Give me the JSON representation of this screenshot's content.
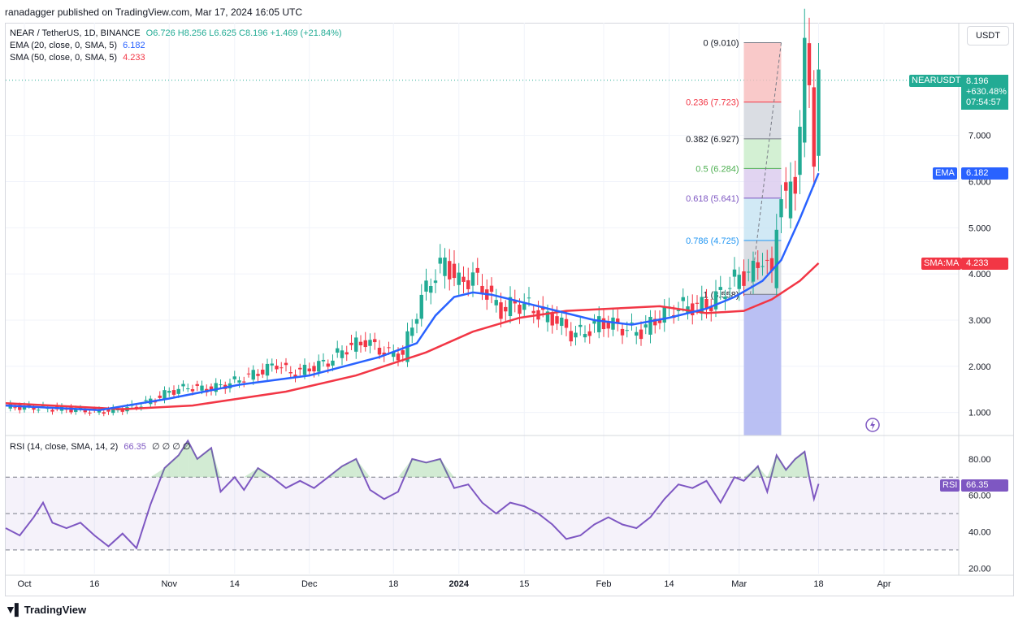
{
  "header": {
    "publisher_line": "ranadagger published on TradingView.com, Mar 17, 2024 16:05 UTC"
  },
  "legend": {
    "symbol": "NEAR / TetherUS, 1D, BINANCE",
    "ohlc": "O6.726 H8.256 L6.625 C8.196 +1.469 (+21.84%)",
    "ema_label": "EMA (20, close, 0, SMA, 5)",
    "ema_value": "6.182",
    "sma_label": "SMA (50, close, 0, SMA, 5)",
    "sma_value": "4.233",
    "rsi_label": "RSI (14, close, SMA, 14, 2)",
    "rsi_value": "66.35",
    "rsi_extra": "∅ ∅ ∅ ∅"
  },
  "currency_button": "USDT",
  "tags": {
    "symbol_tag": "NEARUSDT",
    "price": "8.196",
    "change": "+630.48%",
    "countdown": "07:54:57",
    "ema_tag": "EMA",
    "ema_val": "6.182",
    "sma_tag": "SMA:MA",
    "sma_val": "4.233",
    "rsi_tag": "RSI",
    "rsi_val": "66.35"
  },
  "footer": {
    "brand": "TradingView"
  },
  "colors": {
    "up": "#22ab94",
    "down": "#f23645",
    "ema": "#2962ff",
    "sma": "#f23645",
    "rsi": "#7e57c2"
  },
  "chart_data": [
    {
      "type": "candlestick",
      "title": "NEAR / TetherUS, 1D, BINANCE",
      "y_ticks": [
        "1.000",
        "2.000",
        "3.000",
        "4.000",
        "5.000",
        "6.000",
        "7.000"
      ],
      "ylim": [
        0.5,
        9.3
      ],
      "x_ticks": [
        "Oct",
        "16",
        "Nov",
        "14",
        "Dec",
        "18",
        "2024",
        "15",
        "Feb",
        "14",
        "Mar",
        "18",
        "Apr"
      ],
      "x_tick_days": [
        4,
        19,
        35,
        49,
        65,
        83,
        97,
        111,
        128,
        142,
        157,
        174,
        188
      ],
      "x_range_days": [
        0,
        204
      ],
      "fibonacci": {
        "levels": [
          {
            "label": "0 (9.010)",
            "value": 9.01
          },
          {
            "label": "0.236 (7.723)",
            "value": 7.723
          },
          {
            "label": "0.382 (6.927)",
            "value": 6.927
          },
          {
            "label": "0.5 (6.284)",
            "value": 6.284
          },
          {
            "label": "0.618 (5.641)",
            "value": 5.641
          },
          {
            "label": "0.786 (4.725)",
            "value": 4.725
          },
          {
            "label": "1 (3.558)",
            "value": 3.558
          }
        ],
        "start_day": 158,
        "end_day": 166
      },
      "close_series": [
        {
          "d": 0,
          "c": 1.12
        },
        {
          "d": 5,
          "c": 1.11
        },
        {
          "d": 10,
          "c": 1.08
        },
        {
          "d": 15,
          "c": 1.06
        },
        {
          "d": 19,
          "c": 1.02
        },
        {
          "d": 23,
          "c": 1.04
        },
        {
          "d": 27,
          "c": 1.12
        },
        {
          "d": 31,
          "c": 1.25
        },
        {
          "d": 35,
          "c": 1.45
        },
        {
          "d": 39,
          "c": 1.55
        },
        {
          "d": 43,
          "c": 1.5
        },
        {
          "d": 47,
          "c": 1.6
        },
        {
          "d": 51,
          "c": 1.75
        },
        {
          "d": 55,
          "c": 1.9
        },
        {
          "d": 58,
          "c": 2.05
        },
        {
          "d": 61,
          "c": 1.85
        },
        {
          "d": 65,
          "c": 1.95
        },
        {
          "d": 69,
          "c": 2.1
        },
        {
          "d": 73,
          "c": 2.4
        },
        {
          "d": 77,
          "c": 2.55
        },
        {
          "d": 81,
          "c": 2.3
        },
        {
          "d": 85,
          "c": 2.25
        },
        {
          "d": 88,
          "c": 3.2
        },
        {
          "d": 91,
          "c": 3.9
        },
        {
          "d": 94,
          "c": 4.25
        },
        {
          "d": 97,
          "c": 3.8
        },
        {
          "d": 100,
          "c": 3.95
        },
        {
          "d": 103,
          "c": 3.6
        },
        {
          "d": 106,
          "c": 3.2
        },
        {
          "d": 109,
          "c": 3.35
        },
        {
          "d": 112,
          "c": 3.3
        },
        {
          "d": 115,
          "c": 3.1
        },
        {
          "d": 118,
          "c": 3.0
        },
        {
          "d": 121,
          "c": 2.7
        },
        {
          "d": 124,
          "c": 2.75
        },
        {
          "d": 127,
          "c": 2.95
        },
        {
          "d": 130,
          "c": 2.9
        },
        {
          "d": 133,
          "c": 2.8
        },
        {
          "d": 136,
          "c": 2.75
        },
        {
          "d": 139,
          "c": 3.0
        },
        {
          "d": 142,
          "c": 3.2
        },
        {
          "d": 145,
          "c": 3.3
        },
        {
          "d": 148,
          "c": 3.3
        },
        {
          "d": 151,
          "c": 3.35
        },
        {
          "d": 154,
          "c": 3.7
        },
        {
          "d": 157,
          "c": 3.95
        },
        {
          "d": 160,
          "c": 4.05
        },
        {
          "d": 162,
          "c": 4.4
        },
        {
          "d": 164,
          "c": 3.9
        },
        {
          "d": 165,
          "c": 5.2
        },
        {
          "d": 166,
          "c": 5.8
        },
        {
          "d": 167,
          "c": 5.5
        },
        {
          "d": 168,
          "c": 5.9
        },
        {
          "d": 169,
          "c": 6.1
        },
        {
          "d": 170,
          "c": 7.2
        },
        {
          "d": 171,
          "c": 8.6
        },
        {
          "d": 172,
          "c": 8.2
        },
        {
          "d": 173,
          "c": 6.7
        },
        {
          "d": 174,
          "c": 8.196
        }
      ],
      "ema20": [
        {
          "d": 0,
          "v": 1.15
        },
        {
          "d": 20,
          "v": 1.05
        },
        {
          "d": 35,
          "v": 1.3
        },
        {
          "d": 50,
          "v": 1.6
        },
        {
          "d": 65,
          "v": 1.8
        },
        {
          "d": 80,
          "v": 2.2
        },
        {
          "d": 88,
          "v": 2.5
        },
        {
          "d": 92,
          "v": 3.1
        },
        {
          "d": 96,
          "v": 3.5
        },
        {
          "d": 100,
          "v": 3.6
        },
        {
          "d": 104,
          "v": 3.55
        },
        {
          "d": 110,
          "v": 3.4
        },
        {
          "d": 118,
          "v": 3.2
        },
        {
          "d": 126,
          "v": 3.0
        },
        {
          "d": 134,
          "v": 2.9
        },
        {
          "d": 142,
          "v": 3.05
        },
        {
          "d": 150,
          "v": 3.25
        },
        {
          "d": 156,
          "v": 3.5
        },
        {
          "d": 162,
          "v": 3.85
        },
        {
          "d": 166,
          "v": 4.3
        },
        {
          "d": 170,
          "v": 5.2
        },
        {
          "d": 174,
          "v": 6.182
        }
      ],
      "sma50": [
        {
          "d": 0,
          "v": 1.2
        },
        {
          "d": 25,
          "v": 1.07
        },
        {
          "d": 40,
          "v": 1.15
        },
        {
          "d": 60,
          "v": 1.45
        },
        {
          "d": 75,
          "v": 1.8
        },
        {
          "d": 90,
          "v": 2.3
        },
        {
          "d": 100,
          "v": 2.75
        },
        {
          "d": 110,
          "v": 3.05
        },
        {
          "d": 120,
          "v": 3.2
        },
        {
          "d": 130,
          "v": 3.25
        },
        {
          "d": 140,
          "v": 3.3
        },
        {
          "d": 150,
          "v": 3.15
        },
        {
          "d": 158,
          "v": 3.2
        },
        {
          "d": 164,
          "v": 3.45
        },
        {
          "d": 170,
          "v": 3.85
        },
        {
          "d": 174,
          "v": 4.233
        }
      ]
    },
    {
      "type": "line",
      "title": "RSI (14, close, SMA, 14, 2)",
      "y_ticks": [
        "20.00",
        "40.00",
        "60.00",
        "80.00"
      ],
      "ylim": [
        17,
        92
      ],
      "bands": [
        30,
        50,
        70
      ],
      "values": [
        {
          "d": 0,
          "v": 42
        },
        {
          "d": 3,
          "v": 38
        },
        {
          "d": 6,
          "v": 48
        },
        {
          "d": 8,
          "v": 56
        },
        {
          "d": 10,
          "v": 45
        },
        {
          "d": 13,
          "v": 42
        },
        {
          "d": 16,
          "v": 45
        },
        {
          "d": 19,
          "v": 38
        },
        {
          "d": 22,
          "v": 32
        },
        {
          "d": 25,
          "v": 39
        },
        {
          "d": 28,
          "v": 31
        },
        {
          "d": 31,
          "v": 55
        },
        {
          "d": 34,
          "v": 75
        },
        {
          "d": 37,
          "v": 82
        },
        {
          "d": 39,
          "v": 90
        },
        {
          "d": 41,
          "v": 80
        },
        {
          "d": 44,
          "v": 86
        },
        {
          "d": 46,
          "v": 62
        },
        {
          "d": 49,
          "v": 70
        },
        {
          "d": 51,
          "v": 63
        },
        {
          "d": 54,
          "v": 75
        },
        {
          "d": 57,
          "v": 70
        },
        {
          "d": 60,
          "v": 64
        },
        {
          "d": 63,
          "v": 68
        },
        {
          "d": 66,
          "v": 64
        },
        {
          "d": 69,
          "v": 70
        },
        {
          "d": 72,
          "v": 76
        },
        {
          "d": 75,
          "v": 80
        },
        {
          "d": 78,
          "v": 63
        },
        {
          "d": 81,
          "v": 58
        },
        {
          "d": 84,
          "v": 62
        },
        {
          "d": 87,
          "v": 80
        },
        {
          "d": 90,
          "v": 78
        },
        {
          "d": 93,
          "v": 80
        },
        {
          "d": 96,
          "v": 64
        },
        {
          "d": 99,
          "v": 66
        },
        {
          "d": 102,
          "v": 56
        },
        {
          "d": 105,
          "v": 50
        },
        {
          "d": 108,
          "v": 56
        },
        {
          "d": 111,
          "v": 54
        },
        {
          "d": 114,
          "v": 50
        },
        {
          "d": 117,
          "v": 44
        },
        {
          "d": 120,
          "v": 36
        },
        {
          "d": 123,
          "v": 38
        },
        {
          "d": 126,
          "v": 44
        },
        {
          "d": 129,
          "v": 48
        },
        {
          "d": 132,
          "v": 44
        },
        {
          "d": 135,
          "v": 42
        },
        {
          "d": 138,
          "v": 48
        },
        {
          "d": 141,
          "v": 58
        },
        {
          "d": 144,
          "v": 66
        },
        {
          "d": 147,
          "v": 64
        },
        {
          "d": 150,
          "v": 68
        },
        {
          "d": 153,
          "v": 56
        },
        {
          "d": 156,
          "v": 70
        },
        {
          "d": 158,
          "v": 68
        },
        {
          "d": 161,
          "v": 76
        },
        {
          "d": 163,
          "v": 62
        },
        {
          "d": 165,
          "v": 82
        },
        {
          "d": 167,
          "v": 74
        },
        {
          "d": 169,
          "v": 80
        },
        {
          "d": 171,
          "v": 84
        },
        {
          "d": 172,
          "v": 70
        },
        {
          "d": 173,
          "v": 58
        },
        {
          "d": 174,
          "v": 66.35
        }
      ]
    }
  ]
}
